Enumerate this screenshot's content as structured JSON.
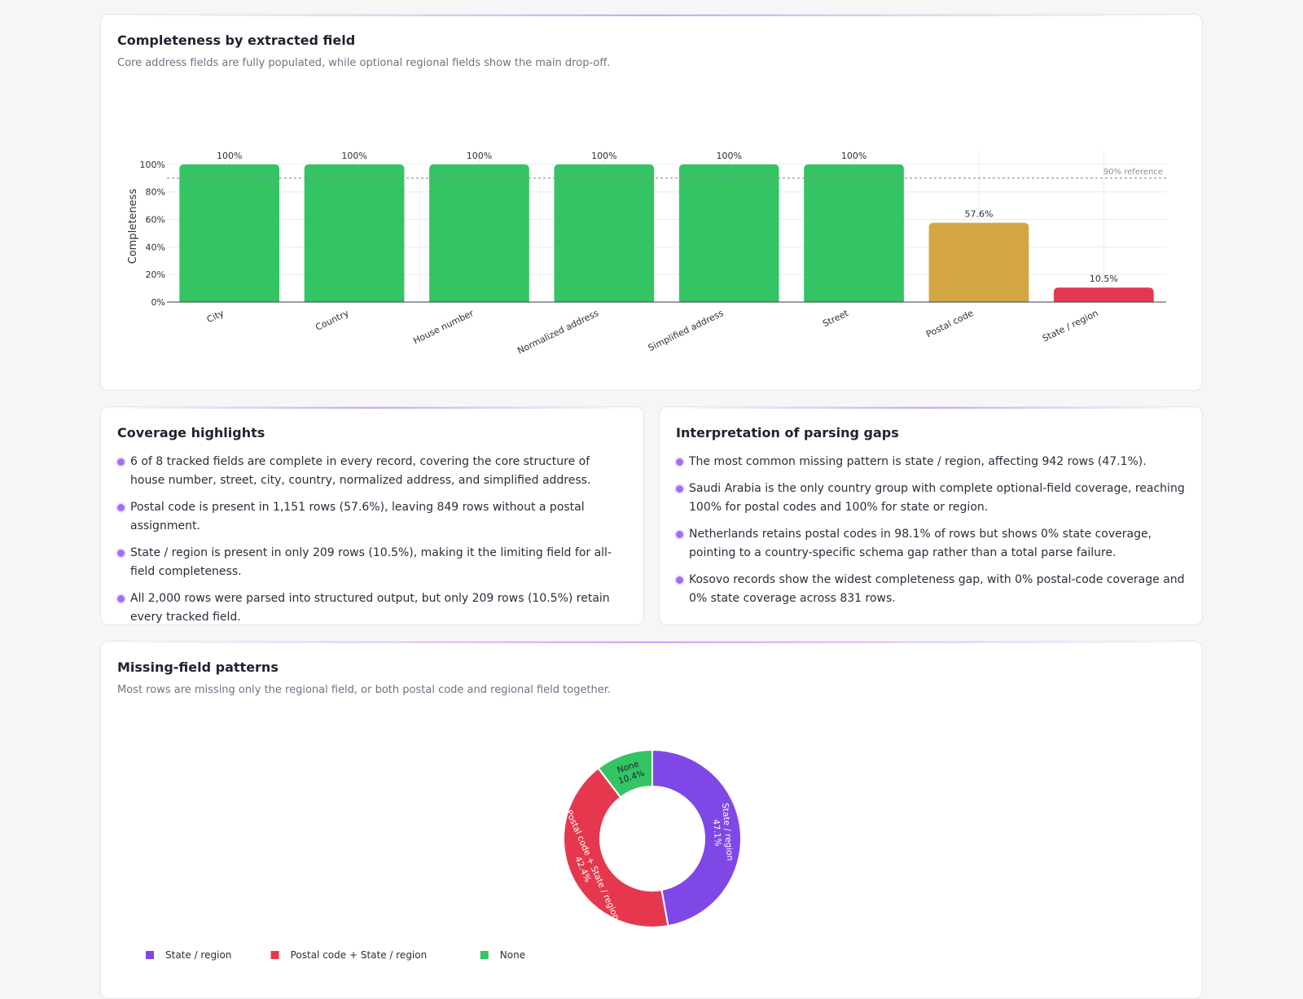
{
  "completeness_card": {
    "title": "Completeness by extracted field",
    "subtitle": "Core address fields are fully populated, while optional regional fields show the main drop-off."
  },
  "highlights_card": {
    "title": "Coverage highlights",
    "items": [
      "6 of 8 tracked fields are complete in every record, covering the core structure of house number, street, city, country, normalized address, and simplified address.",
      "Postal code is present in 1,151 rows (57.6%), leaving 849 rows without a postal assignment.",
      "State / region is present in only 209 rows (10.5%), making it the limiting field for all-field completeness.",
      "All 2,000 rows were parsed into structured output, but only 209 rows (10.5%) retain every tracked field."
    ]
  },
  "gaps_card": {
    "title": "Interpretation of parsing gaps",
    "items": [
      "The most common missing pattern is state / region, affecting 942 rows (47.1%).",
      "Saudi Arabia is the only country group with complete optional-field coverage, reaching 100% for postal codes and 100% for state or region.",
      "Netherlands retains postal codes in 98.1% of rows but shows 0% state coverage, pointing to a country-specific schema gap rather than a total parse failure.",
      "Kosovo records show the widest completeness gap, with 0% postal-code coverage and 0% state coverage across 831 rows."
    ]
  },
  "patterns_card": {
    "title": "Missing-field patterns",
    "subtitle": "Most rows are missing only the regional field, or both postal code and regional field together."
  },
  "chart_data": [
    {
      "type": "bar",
      "ylabel": "Completeness",
      "categories": [
        "City",
        "Country",
        "House number",
        "Normalized address",
        "Simplified address",
        "Street",
        "Postal code",
        "State / region"
      ],
      "values": [
        100,
        100,
        100,
        100,
        100,
        100,
        57.6,
        10.5
      ],
      "value_labels": [
        "100%",
        "100%",
        "100%",
        "100%",
        "100%",
        "100%",
        "57.6%",
        "10.5%"
      ],
      "colors": [
        "#34c463",
        "#34c463",
        "#34c463",
        "#34c463",
        "#34c463",
        "#34c463",
        "#d4a641",
        "#e5384f"
      ],
      "ylim": [
        0,
        110
      ],
      "yticks": [
        0,
        20,
        40,
        60,
        80,
        100
      ],
      "ytick_labels": [
        "0%",
        "20%",
        "40%",
        "60%",
        "80%",
        "100%"
      ],
      "reference_line": {
        "value": 90,
        "label": "90% reference"
      },
      "grid": true
    },
    {
      "type": "pie",
      "hole": true,
      "labels": [
        "State / region",
        "Postal code + State / region",
        "None"
      ],
      "values": [
        47.1,
        42.4,
        10.4
      ],
      "value_labels": [
        "47.1%",
        "42.4%",
        "10.4%"
      ],
      "colors": [
        "#7f48e6",
        "#e5384f",
        "#34c463"
      ],
      "legend": "bottom-left"
    }
  ]
}
